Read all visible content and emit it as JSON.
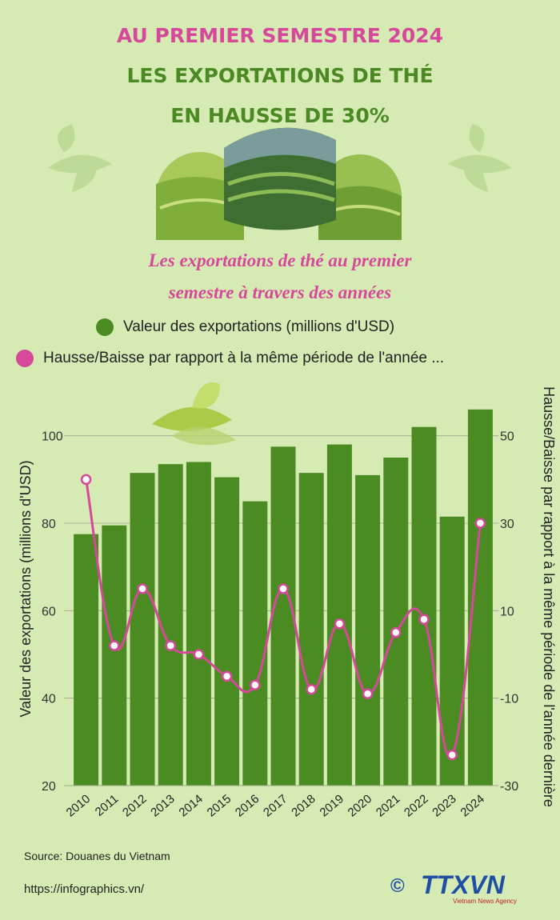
{
  "header": {
    "line1": "AU PREMIER SEMESTRE 2024",
    "line2": "LES EXPORTATIONS DE THÉ",
    "line3": "EN HAUSSE DE 30%"
  },
  "subtitle": {
    "line1": "Les exportations de thé au premier",
    "line2": "semestre à travers des années"
  },
  "footer": {
    "source": "Source: Douanes du Vietnam",
    "url": "https://infographics.vn/",
    "logo_text": "TTXVN",
    "logo_sub": "Vietnam News Agency",
    "logo_symbol": "©"
  },
  "colors": {
    "background": "#d6eab4",
    "bar": "#4a8c22",
    "line": "#d6489a",
    "title_pink": "#d6489a",
    "title_green": "#4b8a22",
    "logo_blue": "#1f4fa3"
  },
  "chart_data": {
    "type": "bar+line",
    "categories": [
      "2010",
      "2011",
      "2012",
      "2013",
      "2014",
      "2015",
      "2016",
      "2017",
      "2018",
      "2019",
      "2020",
      "2021",
      "2022",
      "2023",
      "2024"
    ],
    "series": [
      {
        "name": "Valeur des exportations (millions d'USD)",
        "type": "bar",
        "axis": "left",
        "values": [
          77.5,
          79.5,
          91.5,
          93.5,
          94,
          90.5,
          85,
          97.5,
          91.5,
          98,
          91,
          95,
          102,
          81.5,
          106
        ]
      },
      {
        "name": "Hausse/Baisse par rapport à la même période de l'année ...",
        "type": "line",
        "axis": "right",
        "values": [
          40,
          2,
          15,
          2,
          0,
          -5,
          -7,
          15,
          -8,
          7,
          -9,
          5,
          8,
          -23,
          30
        ]
      }
    ],
    "y_left": {
      "label": "Valeur des exportations (millions d'USD)",
      "ticks": [
        20,
        40,
        60,
        80,
        100
      ],
      "range": [
        20,
        110
      ]
    },
    "y_right": {
      "label": "Hausse/Baisse par rapport à la même période de l'année dernière",
      "ticks": [
        -30,
        -10,
        10,
        30,
        50
      ],
      "range": [
        -30,
        60
      ]
    },
    "grid": true,
    "legend_position": "top"
  }
}
